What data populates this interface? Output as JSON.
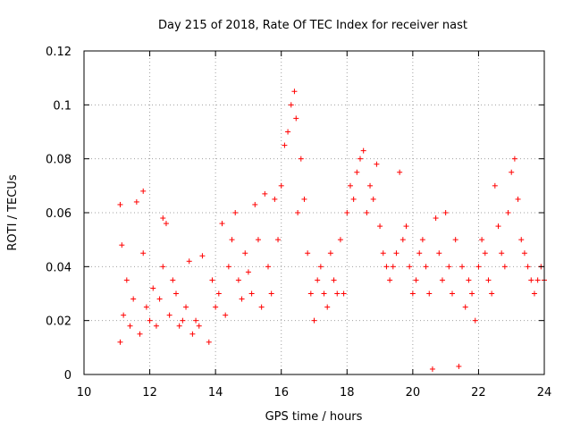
{
  "chart_data": {
    "type": "scatter",
    "title": "Day 215 of 2018, Rate Of TEC Index for receiver nast",
    "xlabel": "GPS time / hours",
    "ylabel": "ROTI / TECUs",
    "xlim": [
      10,
      24
    ],
    "ylim": [
      0,
      0.12
    ],
    "x_ticks": [
      10,
      12,
      14,
      16,
      18,
      20,
      22,
      24
    ],
    "x_tick_labels": [
      "10",
      "12",
      "14",
      "16",
      "18",
      "20",
      "22",
      "24"
    ],
    "y_ticks": [
      0,
      0.02,
      0.04,
      0.06,
      0.08,
      0.1,
      0.12
    ],
    "y_tick_labels": [
      "0",
      "0.02",
      "0.04",
      "0.06",
      "0.08",
      "0.1",
      "0.12"
    ],
    "grid": true,
    "marker": "+",
    "marker_color": "#ff0000",
    "series": [
      {
        "name": "ROTI",
        "x": [
          11.1,
          11.1,
          11.15,
          11.2,
          11.3,
          11.4,
          11.5,
          11.6,
          11.7,
          11.8,
          11.8,
          11.9,
          12.0,
          12.1,
          12.2,
          12.3,
          12.4,
          12.4,
          12.5,
          12.6,
          12.7,
          12.8,
          12.9,
          13.0,
          13.1,
          13.2,
          13.3,
          13.4,
          13.5,
          13.6,
          13.8,
          13.9,
          14.0,
          14.1,
          14.2,
          14.3,
          14.4,
          14.5,
          14.6,
          14.7,
          14.8,
          14.9,
          15.0,
          15.1,
          15.2,
          15.3,
          15.4,
          15.5,
          15.6,
          15.7,
          15.8,
          15.9,
          16.0,
          16.1,
          16.2,
          16.3,
          16.4,
          16.45,
          16.5,
          16.6,
          16.7,
          16.8,
          16.9,
          17.0,
          17.1,
          17.2,
          17.3,
          17.4,
          17.5,
          17.6,
          17.7,
          17.8,
          17.9,
          18.0,
          18.1,
          18.2,
          18.3,
          18.4,
          18.5,
          18.6,
          18.7,
          18.8,
          18.9,
          19.0,
          19.1,
          19.2,
          19.3,
          19.4,
          19.5,
          19.6,
          19.7,
          19.8,
          19.9,
          20.0,
          20.1,
          20.2,
          20.3,
          20.4,
          20.5,
          20.6,
          20.7,
          20.8,
          20.9,
          21.0,
          21.1,
          21.2,
          21.3,
          21.4,
          21.5,
          21.6,
          21.7,
          21.8,
          21.9,
          22.0,
          22.1,
          22.2,
          22.3,
          22.4,
          22.5,
          22.6,
          22.7,
          22.8,
          22.9,
          23.0,
          23.1,
          23.2,
          23.3,
          23.4,
          23.5,
          23.6,
          23.7,
          23.8,
          23.9,
          24.0
        ],
        "y": [
          0.063,
          0.012,
          0.048,
          0.022,
          0.035,
          0.018,
          0.028,
          0.064,
          0.015,
          0.068,
          0.045,
          0.025,
          0.02,
          0.032,
          0.018,
          0.028,
          0.058,
          0.04,
          0.056,
          0.022,
          0.035,
          0.03,
          0.018,
          0.02,
          0.025,
          0.042,
          0.015,
          0.02,
          0.018,
          0.044,
          0.012,
          0.035,
          0.025,
          0.03,
          0.056,
          0.022,
          0.04,
          0.05,
          0.06,
          0.035,
          0.028,
          0.045,
          0.038,
          0.03,
          0.063,
          0.05,
          0.025,
          0.067,
          0.04,
          0.03,
          0.065,
          0.05,
          0.07,
          0.085,
          0.09,
          0.1,
          0.105,
          0.095,
          0.06,
          0.08,
          0.065,
          0.045,
          0.03,
          0.02,
          0.035,
          0.04,
          0.03,
          0.025,
          0.045,
          0.035,
          0.03,
          0.05,
          0.03,
          0.06,
          0.07,
          0.065,
          0.075,
          0.08,
          0.083,
          0.06,
          0.07,
          0.065,
          0.078,
          0.055,
          0.045,
          0.04,
          0.035,
          0.04,
          0.045,
          0.075,
          0.05,
          0.055,
          0.04,
          0.03,
          0.035,
          0.045,
          0.05,
          0.04,
          0.03,
          0.002,
          0.058,
          0.045,
          0.035,
          0.06,
          0.04,
          0.03,
          0.05,
          0.003,
          0.04,
          0.025,
          0.035,
          0.03,
          0.02,
          0.04,
          0.05,
          0.045,
          0.035,
          0.03,
          0.07,
          0.055,
          0.045,
          0.04,
          0.06,
          0.075,
          0.08,
          0.065,
          0.05,
          0.045,
          0.04,
          0.035,
          0.03,
          0.035,
          0.04,
          0.035
        ]
      }
    ]
  }
}
